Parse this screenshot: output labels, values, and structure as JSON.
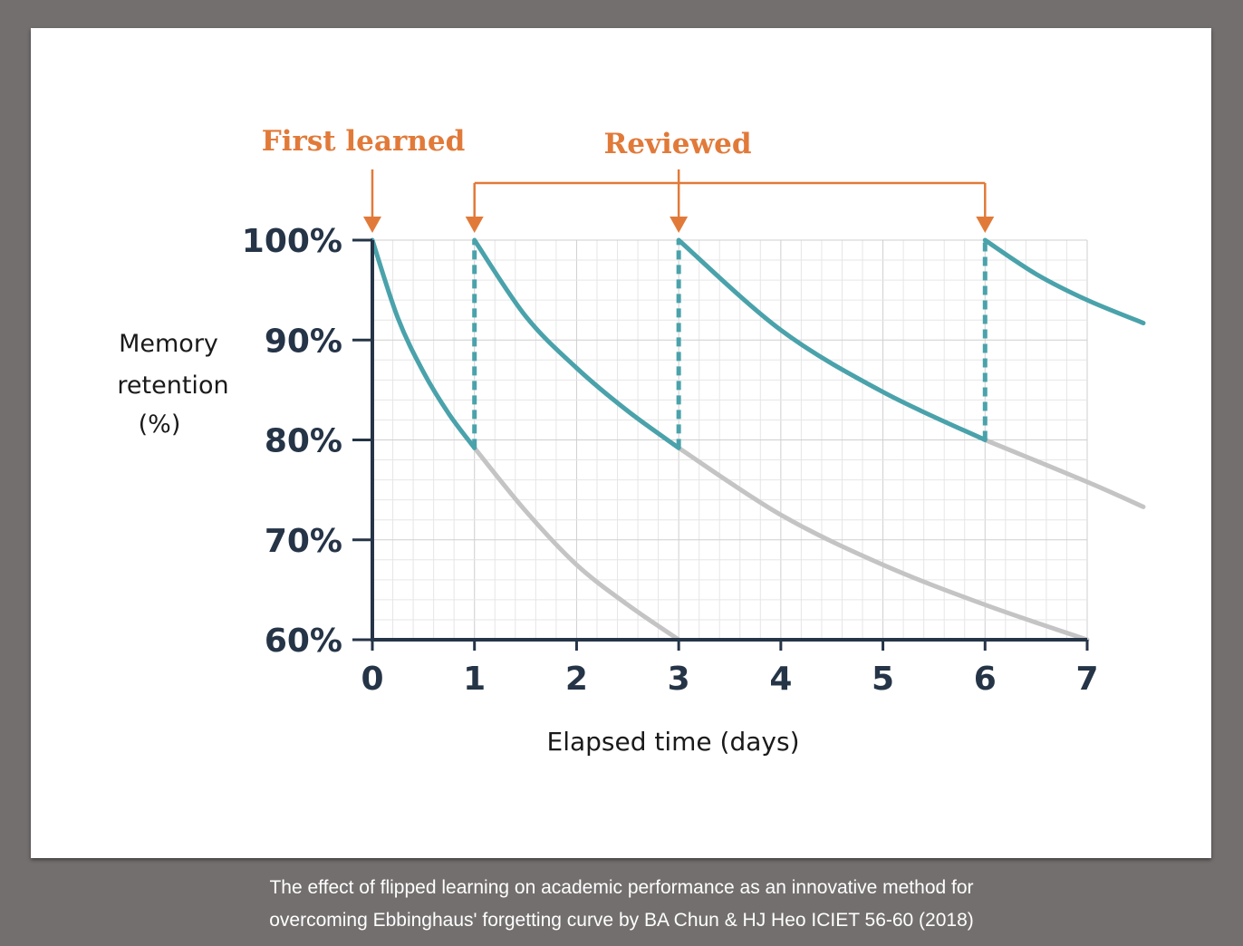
{
  "chart_data": {
    "type": "line",
    "ylabel": [
      "Memory",
      "retention",
      "(%)"
    ],
    "xlabel": "Elapsed time (days)",
    "x_ticks": [
      "0",
      "1",
      "2",
      "3",
      "4",
      "5",
      "6",
      "7"
    ],
    "y_ticks": [
      "100%",
      "90%",
      "80%",
      "70%",
      "60%"
    ],
    "xlim": [
      0,
      7
    ],
    "ylim": [
      60,
      100
    ],
    "grid": true,
    "annotations": {
      "first_learned": "First learned",
      "reviewed": "Reviewed"
    },
    "review_days": [
      1,
      3,
      6
    ],
    "colors": {
      "retention": "#4aa2ab",
      "forgetting": "#c4c4c4",
      "annotation": "#e17a39",
      "axis": "#253447"
    },
    "series": [
      {
        "role": "retention",
        "segments": [
          {
            "x": [
              0,
              0.25,
              0.5,
              0.75,
              1.0
            ],
            "y": [
              100,
              92.2,
              86.8,
              82.6,
              79.2
            ]
          },
          {
            "x": [
              1,
              1.5,
              2,
              2.5,
              3
            ],
            "y": [
              100,
              92.4,
              87.2,
              82.9,
              79.2
            ]
          },
          {
            "x": [
              3,
              4,
              5,
              6
            ],
            "y": [
              100,
              91.0,
              84.8,
              80.0
            ]
          },
          {
            "x": [
              6,
              6.5,
              7,
              7.55
            ],
            "y": [
              100,
              96.6,
              94.0,
              91.7
            ]
          }
        ]
      },
      {
        "role": "forgetting",
        "segments": [
          {
            "x": [
              1,
              1.5,
              2,
              2.5,
              3
            ],
            "y": [
              79.2,
              72.9,
              67.5,
              63.5,
              60
            ]
          },
          {
            "x": [
              3,
              4,
              5,
              6,
              7
            ],
            "y": [
              79.2,
              72.5,
              67.5,
              63.5,
              60
            ]
          },
          {
            "x": [
              6,
              7,
              7.55
            ],
            "y": [
              80.0,
              75.8,
              73.3
            ]
          }
        ]
      }
    ]
  },
  "caption": {
    "line1": "The effect of flipped learning on academic performance as an innovative method for",
    "line2": "overcoming Ebbinghaus' forgetting curve by BA Chun & HJ Heo ICIET 56-60 (2018)"
  }
}
